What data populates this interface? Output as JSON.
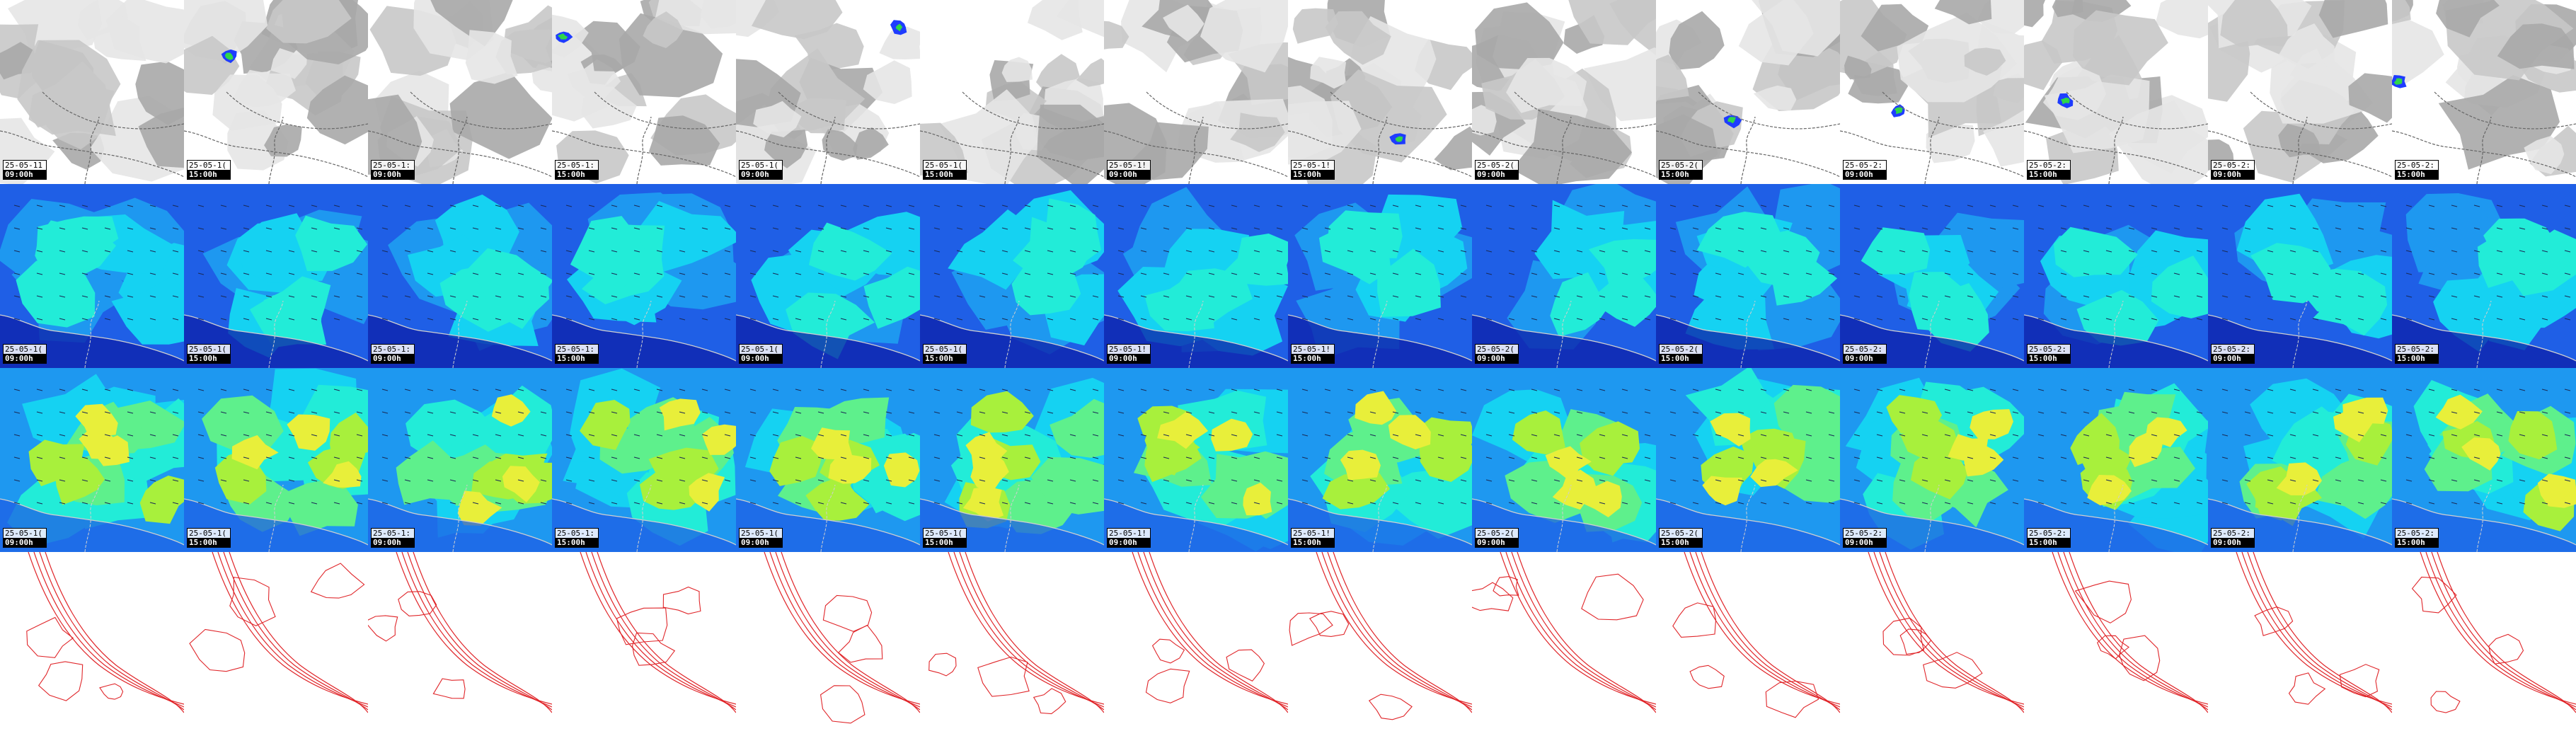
{
  "rows": [
    {
      "id": "clouds",
      "panels": [
        {
          "date": "25-05-11",
          "time": "09:00h"
        },
        {
          "date": "25-05-1(",
          "time": "15:00h"
        },
        {
          "date": "25-05-1:",
          "time": "09:00h"
        },
        {
          "date": "25-05-1:",
          "time": "15:00h"
        },
        {
          "date": "25-05-1(",
          "time": "09:00h"
        },
        {
          "date": "25-05-1(",
          "time": "15:00h"
        },
        {
          "date": "25-05-1!",
          "time": "09:00h"
        },
        {
          "date": "25-05-1!",
          "time": "15:00h"
        },
        {
          "date": "25-05-2(",
          "time": "09:00h"
        },
        {
          "date": "25-05-2(",
          "time": "15:00h"
        },
        {
          "date": "25-05-2:",
          "time": "09:00h"
        },
        {
          "date": "25-05-2:",
          "time": "15:00h"
        },
        {
          "date": "25-05-2:",
          "time": "09:00h"
        },
        {
          "date": "25-05-2:",
          "time": "15:00h"
        }
      ]
    },
    {
      "id": "wind-cold",
      "panels": [
        {
          "date": "25-05-1(",
          "time": "09:00h"
        },
        {
          "date": "25-05-1(",
          "time": "15:00h"
        },
        {
          "date": "25-05-1:",
          "time": "09:00h"
        },
        {
          "date": "25-05-1:",
          "time": "15:00h"
        },
        {
          "date": "25-05-1(",
          "time": "09:00h"
        },
        {
          "date": "25-05-1(",
          "time": "15:00h"
        },
        {
          "date": "25-05-1!",
          "time": "09:00h"
        },
        {
          "date": "25-05-1!",
          "time": "15:00h"
        },
        {
          "date": "25-05-2(",
          "time": "09:00h"
        },
        {
          "date": "25-05-2(",
          "time": "15:00h"
        },
        {
          "date": "25-05-2:",
          "time": "09:00h"
        },
        {
          "date": "25-05-2:",
          "time": "15:00h"
        },
        {
          "date": "25-05-2:",
          "time": "09:00h"
        },
        {
          "date": "25-05-2:",
          "time": "15:00h"
        }
      ]
    },
    {
      "id": "wind-warm",
      "panels": [
        {
          "date": "25-05-1(",
          "time": "09:00h"
        },
        {
          "date": "25-05-1(",
          "time": "15:00h"
        },
        {
          "date": "25-05-1:",
          "time": "09:00h"
        },
        {
          "date": "25-05-1:",
          "time": "15:00h"
        },
        {
          "date": "25-05-1(",
          "time": "09:00h"
        },
        {
          "date": "25-05-1(",
          "time": "15:00h"
        },
        {
          "date": "25-05-1!",
          "time": "09:00h"
        },
        {
          "date": "25-05-1!",
          "time": "15:00h"
        },
        {
          "date": "25-05-2(",
          "time": "09:00h"
        },
        {
          "date": "25-05-2(",
          "time": "15:00h"
        },
        {
          "date": "25-05-2:",
          "time": "09:00h"
        },
        {
          "date": "25-05-2:",
          "time": "15:00h"
        },
        {
          "date": "25-05-2:",
          "time": "09:00h"
        },
        {
          "date": "25-05-2:",
          "time": "15:00h"
        }
      ]
    },
    {
      "id": "contours",
      "panels": [
        {},
        {},
        {},
        {},
        {},
        {},
        {},
        {},
        {},
        {},
        {},
        {},
        {},
        {}
      ]
    }
  ],
  "colors": {
    "cloud_light": "#e6e6e6",
    "cloud_mid": "#c8c8c8",
    "cloud_dark": "#a8a8a8",
    "precip_blue": "#1e3cff",
    "precip_cyan": "#29b8ff",
    "precip_green": "#2fd64a",
    "wind_navy": "#0e1fa8",
    "wind_blue": "#1f5fe6",
    "wind_mid": "#1e98f0",
    "wind_cyan": "#15d2f2",
    "wind_aqua": "#22ecd8",
    "wind_green": "#5ef08c",
    "wind_lime": "#a8f03c",
    "wind_yellow": "#e8ef3a",
    "border": "#666666",
    "contour": "#e0262a"
  }
}
